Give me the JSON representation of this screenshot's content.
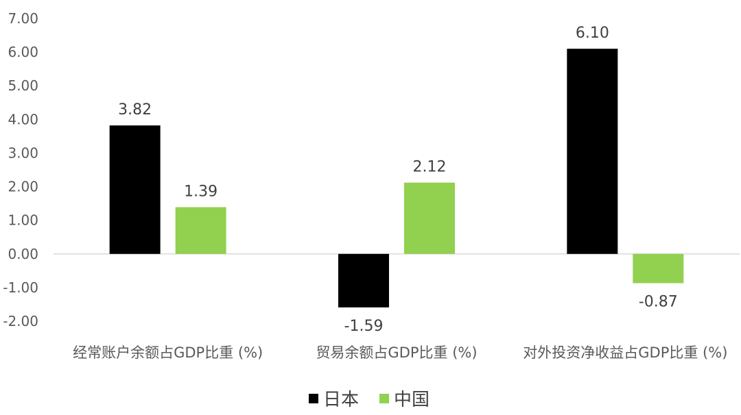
{
  "chart_data": {
    "type": "bar",
    "categories": [
      "经常账户余额占GDP比重 (%)",
      "贸易余额占GDP比重 (%)",
      "对外投资净收益占GDP比重 (%)"
    ],
    "series": [
      {
        "name": "日本",
        "values": [
          3.82,
          -1.59,
          6.1
        ],
        "labels": [
          "3.82",
          "-1.59",
          "6.10"
        ],
        "color": "#000000"
      },
      {
        "name": "中国",
        "values": [
          1.39,
          2.12,
          -0.87
        ],
        "labels": [
          "1.39",
          "2.12",
          "-0.87"
        ],
        "color": "#92D050"
      }
    ],
    "yticks": [
      "7.00",
      "6.00",
      "5.00",
      "4.00",
      "3.00",
      "2.00",
      "1.00",
      "0.00",
      "-1.00",
      "-2.00"
    ],
    "ylim": [
      -2,
      7
    ],
    "grid": false,
    "legend_position": "bottom"
  }
}
